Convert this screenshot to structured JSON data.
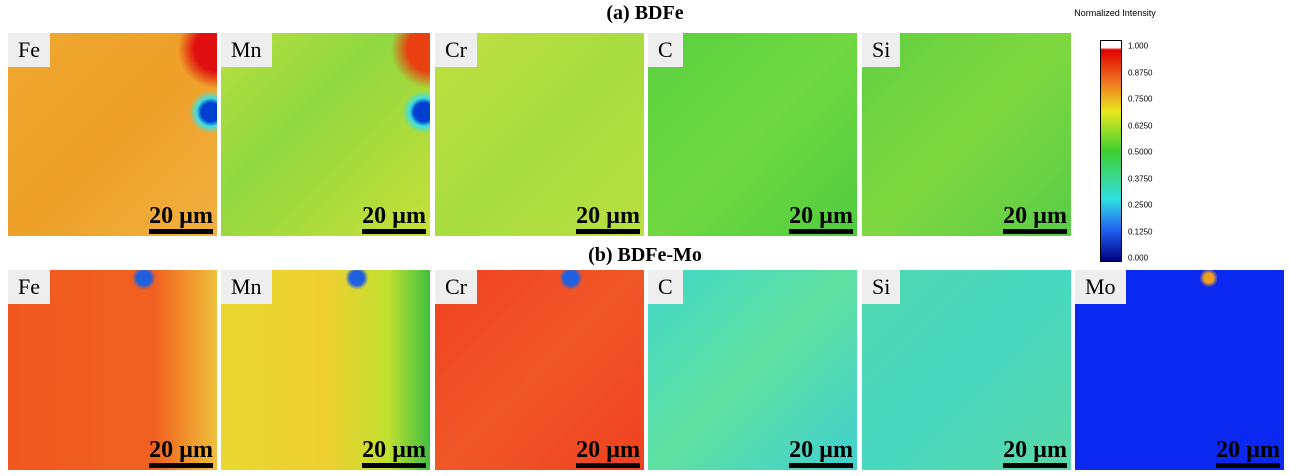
{
  "rows": [
    {
      "title": "(a) BDFe",
      "panels": [
        {
          "element": "Fe",
          "scale_bar": "20 µm"
        },
        {
          "element": "Mn",
          "scale_bar": "20 µm"
        },
        {
          "element": "Cr",
          "scale_bar": "20 µm"
        },
        {
          "element": "C",
          "scale_bar": "20 µm"
        },
        {
          "element": "Si",
          "scale_bar": "20 µm"
        }
      ]
    },
    {
      "title": "(b) BDFe-Mo",
      "panels": [
        {
          "element": "Fe",
          "scale_bar": "20 µm"
        },
        {
          "element": "Mn",
          "scale_bar": "20 µm"
        },
        {
          "element": "Cr",
          "scale_bar": "20 µm"
        },
        {
          "element": "C",
          "scale_bar": "20 µm"
        },
        {
          "element": "Si",
          "scale_bar": "20 µm"
        },
        {
          "element": "Mo",
          "scale_bar": "20 µm"
        }
      ]
    }
  ],
  "colorbar": {
    "title": "Normalized Intensity",
    "ticks": [
      "1.000",
      "0.8750",
      "0.7500",
      "0.6250",
      "0.5000",
      "0.3750",
      "0.2500",
      "0.1250",
      "0.000"
    ]
  }
}
